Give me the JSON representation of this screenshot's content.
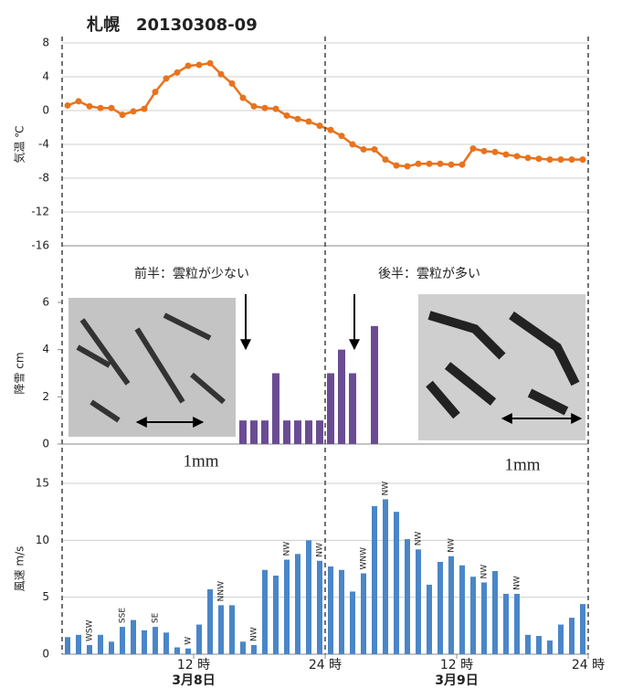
{
  "title": "札幌　20130308-09",
  "chart_data": [
    {
      "type": "line",
      "ylabel": "気温 ℃",
      "color": "#e8731d",
      "grid": true,
      "xlim": [
        0,
        48
      ],
      "ylim": [
        -16,
        8
      ],
      "yticks": [
        8,
        4,
        0,
        -4,
        -8,
        -12,
        -16
      ],
      "x": [
        0.5,
        1.5,
        2.5,
        3.5,
        4.5,
        5.5,
        6.5,
        7.5,
        8.5,
        9.5,
        10.5,
        11.5,
        12.5,
        13.5,
        14.5,
        15.5,
        16.5,
        17.5,
        18.5,
        19.5,
        20.5,
        21.5,
        22.5,
        23.5,
        24.5,
        25.5,
        26.5,
        27.5,
        28.5,
        29.5,
        30.5,
        31.5,
        32.5,
        33.5,
        34.5,
        35.5,
        36.5,
        37.5,
        38.5,
        39.5,
        40.5,
        41.5,
        42.5,
        43.5,
        44.5,
        45.5,
        46.5,
        47.5
      ],
      "values": [
        0.6,
        1.1,
        0.5,
        0.3,
        0.3,
        -0.5,
        -0.1,
        0.2,
        2.2,
        3.8,
        4.5,
        5.3,
        5.4,
        5.6,
        4.3,
        3.2,
        1.5,
        0.5,
        0.3,
        0.2,
        -0.6,
        -1,
        -1.3,
        -1.8,
        -2.3,
        -3,
        -4,
        -4.6,
        -4.6,
        -5.8,
        -6.5,
        -6.6,
        -6.3,
        -6.3,
        -6.3,
        -6.4,
        -6.4,
        -4.5,
        -4.8,
        -4.9,
        -5.2,
        -5.4,
        -5.6,
        -5.7,
        -5.8,
        -5.8,
        -5.8,
        -5.8
      ]
    },
    {
      "type": "bar",
      "ylabel": "降雪 cm",
      "color": "#6a4c93",
      "grid": false,
      "xlim": [
        0,
        48
      ],
      "ylim": [
        0,
        6
      ],
      "yticks": [
        0,
        2,
        4,
        6
      ],
      "x": [
        16.5,
        17.5,
        18.5,
        19.5,
        20.5,
        21.5,
        22.5,
        23.5,
        24.5,
        25.5,
        26.5,
        28.5
      ],
      "values": [
        1,
        1,
        1,
        3,
        1,
        1,
        1,
        1,
        3,
        4,
        3,
        5
      ],
      "annotations": [
        "前半：雲粒が少ない",
        "後半：雲粒が多い",
        "1mm",
        "1mm"
      ]
    },
    {
      "type": "bar",
      "ylabel": "風速 m/s",
      "color": "#4a86c8",
      "grid": true,
      "xlim": [
        0,
        48
      ],
      "ylim": [
        0,
        15
      ],
      "yticks": [
        0,
        5,
        10,
        15
      ],
      "x": [
        0.5,
        1.5,
        2.5,
        3.5,
        4.5,
        5.5,
        6.5,
        7.5,
        8.5,
        9.5,
        10.5,
        11.5,
        12.5,
        13.5,
        14.5,
        15.5,
        16.5,
        17.5,
        18.5,
        19.5,
        20.5,
        21.5,
        22.5,
        23.5,
        24.5,
        25.5,
        26.5,
        27.5,
        28.5,
        29.5,
        30.5,
        31.5,
        32.5,
        33.5,
        34.5,
        35.5,
        36.5,
        37.5,
        38.5,
        39.5,
        40.5,
        41.5,
        42.5,
        43.5,
        44.5,
        45.5,
        46.5,
        47.5
      ],
      "values": [
        1.5,
        1.7,
        0.8,
        1.7,
        1.1,
        2.4,
        3.0,
        2.1,
        2.4,
        1.9,
        0.6,
        0.5,
        2.6,
        5.7,
        4.3,
        4.3,
        1.1,
        0.8,
        7.4,
        6.9,
        8.3,
        8.8,
        10.0,
        8.2,
        7.7,
        7.4,
        5.5,
        7.1,
        13.0,
        13.6,
        12.5,
        10.1,
        9.2,
        6.1,
        8.1,
        8.6,
        7.8,
        6.8,
        6.3,
        7.3,
        5.3,
        5.3,
        1.7,
        1.6,
        1.2,
        2.6,
        3.2,
        4.4
      ],
      "direction_labels": [
        {
          "x": 2.5,
          "label": "WSW",
          "color": "#e03030"
        },
        {
          "x": 5.5,
          "label": "SSE",
          "color": "#e03030"
        },
        {
          "x": 8.5,
          "label": "SE",
          "color": "#e03030"
        },
        {
          "x": 11.5,
          "label": "W",
          "color": "#222222"
        },
        {
          "x": 14.5,
          "label": "NNW",
          "color": "#222222"
        },
        {
          "x": 17.5,
          "label": "NW",
          "color": "#222222"
        },
        {
          "x": 20.5,
          "label": "NW",
          "color": "#222222"
        },
        {
          "x": 23.5,
          "label": "NW",
          "color": "#222222"
        },
        {
          "x": 27.5,
          "label": "WNW",
          "color": "#222222"
        },
        {
          "x": 29.5,
          "label": "NW",
          "color": "#222222"
        },
        {
          "x": 32.5,
          "label": "NW",
          "color": "#222222"
        },
        {
          "x": 35.5,
          "label": "NW",
          "color": "#222222"
        },
        {
          "x": 38.5,
          "label": "NW",
          "color": "#222222"
        },
        {
          "x": 41.5,
          "label": "NW",
          "color": "#222222"
        }
      ],
      "xticks": [
        {
          "value": 12,
          "label": "12 時"
        },
        {
          "value": 24,
          "label": "24 時"
        },
        {
          "value": 36,
          "label": "12 時"
        },
        {
          "value": 48,
          "label": "24 時"
        }
      ],
      "day_labels": [
        {
          "value": 12,
          "label": "3月8日"
        },
        {
          "value": 36,
          "label": "3月9日"
        }
      ],
      "vlines": [
        0,
        24,
        48
      ]
    }
  ]
}
